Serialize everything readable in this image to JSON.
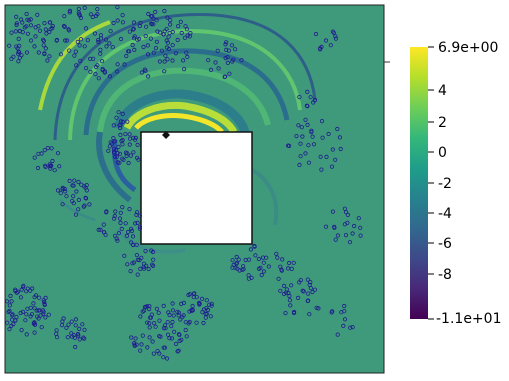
{
  "colorbar": {
    "max_label": "6.9e+00",
    "min_label": "-1.1e+01",
    "ticks": [
      "4",
      "2",
      "0",
      "-2",
      "-4",
      "-6",
      "-8"
    ],
    "colormap": "viridis",
    "stops": [
      "#fde725",
      "#b5de2b",
      "#6ece58",
      "#35b779",
      "#1f9e89",
      "#26828e",
      "#31688e",
      "#3e4989",
      "#482878",
      "#440154"
    ]
  },
  "field": {
    "background_color": "#3f9a7b",
    "obstacle_color": "#ffffff",
    "particle_color": "#1f1b8f",
    "source_marker": "diamond-marker"
  }
}
